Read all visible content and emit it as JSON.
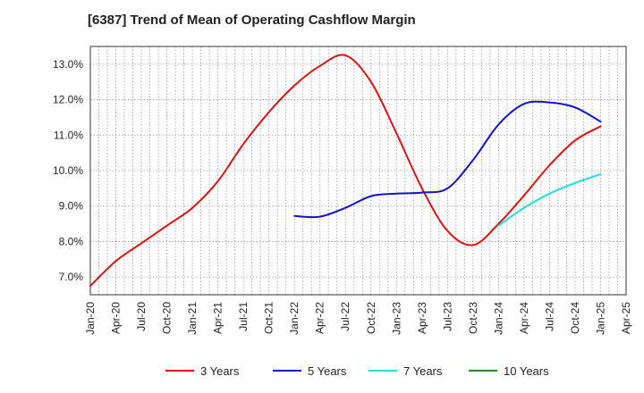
{
  "chart_data": {
    "type": "line",
    "title": "[6387]  Trend of Mean of Operating Cashflow Margin",
    "xlabel": "",
    "ylabel": "",
    "x_ticks": [
      "Jan-20",
      "Apr-20",
      "Jul-20",
      "Oct-20",
      "Jan-21",
      "Apr-21",
      "Jul-21",
      "Oct-21",
      "Jan-22",
      "Apr-22",
      "Jul-22",
      "Oct-22",
      "Jan-23",
      "Apr-23",
      "Jul-23",
      "Oct-23",
      "Jan-24",
      "Apr-24",
      "Jul-24",
      "Oct-24",
      "Jan-25",
      "Apr-25"
    ],
    "y_ticks": [
      "7.0%",
      "8.0%",
      "9.0%",
      "10.0%",
      "11.0%",
      "12.0%",
      "13.0%"
    ],
    "ylim": [
      6.5,
      13.5
    ],
    "grid": true,
    "legend_position": "bottom",
    "series": [
      {
        "name": "3 Years",
        "color": "#dd1111",
        "x": [
          "Jan-20",
          "Apr-20",
          "Jul-20",
          "Oct-20",
          "Jan-21",
          "Apr-21",
          "Jul-21",
          "Oct-21",
          "Jan-22",
          "Apr-22",
          "Jul-22",
          "Oct-22",
          "Jan-23",
          "Apr-23",
          "Jul-23",
          "Oct-23",
          "Jan-24",
          "Apr-24",
          "Jul-24",
          "Oct-24",
          "Jan-25"
        ],
        "values": [
          6.75,
          7.45,
          7.95,
          8.45,
          8.95,
          9.7,
          10.75,
          11.65,
          12.4,
          12.95,
          13.25,
          12.5,
          11.05,
          9.5,
          8.3,
          7.9,
          8.5,
          9.3,
          10.15,
          10.85,
          11.25
        ]
      },
      {
        "name": "5 Years",
        "color": "#1111cc",
        "x": [
          "Jan-22",
          "Apr-22",
          "Jul-22",
          "Oct-22",
          "Jan-23",
          "Apr-23",
          "Jul-23",
          "Oct-23",
          "Jan-24",
          "Apr-24",
          "Jul-24",
          "Oct-24",
          "Jan-25"
        ],
        "values": [
          8.72,
          8.7,
          8.95,
          9.28,
          9.35,
          9.38,
          9.5,
          10.3,
          11.3,
          11.88,
          11.92,
          11.78,
          11.38
        ]
      },
      {
        "name": "7 Years",
        "color": "#22dddd",
        "x": [
          "Jan-24",
          "Apr-24",
          "Jul-24",
          "Oct-24",
          "Jan-25"
        ],
        "values": [
          8.45,
          8.95,
          9.35,
          9.65,
          9.9
        ]
      },
      {
        "name": "10 Years",
        "color": "#228822",
        "x": [],
        "values": []
      }
    ]
  }
}
